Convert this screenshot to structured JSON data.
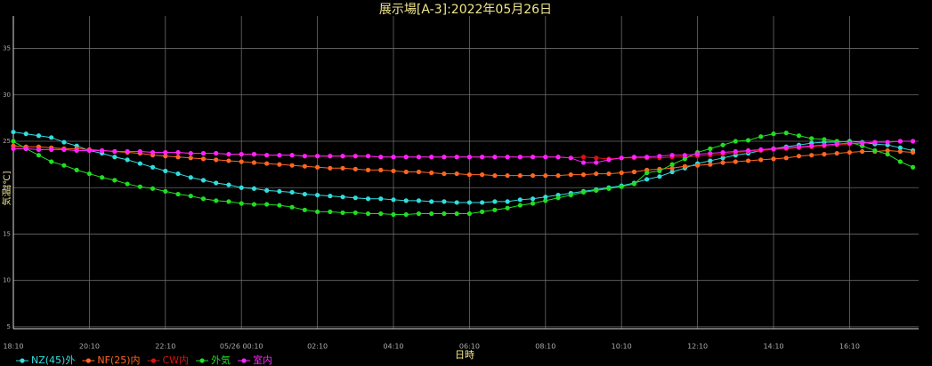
{
  "chart_data": {
    "type": "line",
    "title": "展示場[A-3]:2022年05月26日",
    "xlabel": "日時",
    "ylabel": "気温[℃]",
    "categories": [
      "18:10",
      null,
      null,
      null,
      null,
      null,
      "20:10",
      null,
      null,
      null,
      null,
      null,
      "22:10",
      null,
      null,
      null,
      null,
      null,
      "05/26 00:10",
      null,
      null,
      null,
      null,
      null,
      "02:10",
      null,
      null,
      null,
      null,
      null,
      "04:10",
      null,
      null,
      null,
      null,
      null,
      "06:10",
      null,
      null,
      null,
      null,
      null,
      "08:10",
      null,
      null,
      null,
      null,
      null,
      "10:10",
      null,
      null,
      null,
      null,
      null,
      "12:10",
      null,
      null,
      null,
      null,
      null,
      "14:10",
      null,
      null,
      null,
      null,
      null,
      "16:10",
      null,
      null,
      null,
      null,
      null
    ],
    "ylim": [
      4.8,
      38.5
    ],
    "yticks": [
      5,
      10,
      15,
      20,
      25,
      30,
      35
    ],
    "grid": true,
    "legend": "bottom-left",
    "series": [
      {
        "name": "NZ(45)外",
        "color": "#33dddd",
        "values": [
          26.0,
          25.8,
          25.6,
          25.4,
          24.9,
          24.5,
          24.0,
          23.7,
          23.3,
          23.0,
          22.6,
          22.2,
          21.8,
          21.5,
          21.1,
          20.8,
          20.5,
          20.3,
          20.0,
          19.9,
          19.7,
          19.6,
          19.5,
          19.3,
          19.2,
          19.1,
          19.0,
          18.9,
          18.8,
          18.8,
          18.7,
          18.6,
          18.6,
          18.5,
          18.5,
          18.4,
          18.4,
          18.4,
          18.5,
          18.5,
          18.7,
          18.8,
          19.0,
          19.2,
          19.4,
          19.6,
          19.8,
          20.0,
          20.2,
          20.5,
          20.9,
          21.2,
          21.7,
          22.1,
          22.6,
          22.9,
          23.2,
          23.5,
          23.7,
          24.0,
          24.2,
          24.4,
          24.6,
          24.8,
          24.9,
          24.9,
          25.0,
          24.9,
          24.7,
          24.6,
          24.3,
          24.0
        ]
      },
      {
        "name": "NF(25)内",
        "color": "#ff6622",
        "values": [
          24.5,
          24.4,
          24.4,
          24.3,
          24.2,
          24.2,
          24.1,
          24.0,
          23.9,
          23.8,
          23.7,
          23.5,
          23.4,
          23.3,
          23.2,
          23.1,
          23.0,
          22.9,
          22.8,
          22.7,
          22.6,
          22.5,
          22.4,
          22.3,
          22.2,
          22.1,
          22.1,
          22.0,
          21.9,
          21.9,
          21.8,
          21.7,
          21.7,
          21.6,
          21.5,
          21.5,
          21.4,
          21.4,
          21.3,
          21.3,
          21.3,
          21.3,
          21.3,
          21.3,
          21.4,
          21.4,
          21.5,
          21.5,
          21.6,
          21.7,
          21.9,
          22.0,
          22.1,
          22.3,
          22.4,
          22.5,
          22.7,
          22.8,
          22.9,
          23.0,
          23.1,
          23.2,
          23.4,
          23.5,
          23.6,
          23.7,
          23.8,
          23.9,
          23.9,
          24.0,
          23.9,
          23.8
        ]
      },
      {
        "name": "CW内",
        "color": "#dd1111",
        "values": [
          24.2,
          24.2,
          24.1,
          24.1,
          24.1,
          24.0,
          24.0,
          24.0,
          23.9,
          23.9,
          23.9,
          23.8,
          23.8,
          23.8,
          23.7,
          23.7,
          23.7,
          23.6,
          23.6,
          23.6,
          23.5,
          23.5,
          23.5,
          23.4,
          23.4,
          23.4,
          23.4,
          23.4,
          23.4,
          23.3,
          23.3,
          23.3,
          23.3,
          23.3,
          23.3,
          23.3,
          23.3,
          23.3,
          23.3,
          23.3,
          23.3,
          23.3,
          23.3,
          23.3,
          23.2,
          23.3,
          23.2,
          23.1,
          23.2,
          23.2,
          23.2,
          23.2,
          23.3,
          23.3,
          23.4,
          23.5,
          23.6,
          23.8,
          23.9,
          24.0,
          24.1,
          24.2,
          24.3,
          24.4,
          24.5,
          24.6,
          24.7,
          24.8,
          24.9,
          24.9,
          25.0,
          25.0
        ]
      },
      {
        "name": "外気",
        "color": "#22dd22",
        "values": [
          25.0,
          24.2,
          23.5,
          22.8,
          22.4,
          21.9,
          21.5,
          21.1,
          20.8,
          20.4,
          20.1,
          19.9,
          19.6,
          19.3,
          19.1,
          18.8,
          18.6,
          18.5,
          18.3,
          18.2,
          18.2,
          18.1,
          17.9,
          17.6,
          17.4,
          17.4,
          17.3,
          17.3,
          17.2,
          17.2,
          17.1,
          17.1,
          17.2,
          17.2,
          17.2,
          17.2,
          17.2,
          17.4,
          17.6,
          17.8,
          18.1,
          18.3,
          18.6,
          18.9,
          19.2,
          19.5,
          19.7,
          19.9,
          20.1,
          20.4,
          21.6,
          21.8,
          22.5,
          23.1,
          23.8,
          24.2,
          24.6,
          25.0,
          25.1,
          25.5,
          25.8,
          25.9,
          25.6,
          25.3,
          25.2,
          25.0,
          24.9,
          24.5,
          24.0,
          23.6,
          22.8,
          22.2
        ]
      },
      {
        "name": "室内",
        "color": "#ff22ff",
        "values": [
          24.2,
          24.2,
          24.1,
          24.1,
          24.1,
          24.0,
          24.0,
          24.0,
          23.9,
          23.9,
          23.9,
          23.8,
          23.8,
          23.8,
          23.7,
          23.7,
          23.7,
          23.6,
          23.6,
          23.6,
          23.5,
          23.5,
          23.5,
          23.4,
          23.4,
          23.4,
          23.4,
          23.4,
          23.4,
          23.3,
          23.3,
          23.3,
          23.3,
          23.3,
          23.3,
          23.3,
          23.3,
          23.3,
          23.3,
          23.3,
          23.3,
          23.3,
          23.3,
          23.3,
          23.2,
          22.7,
          22.7,
          23.0,
          23.2,
          23.3,
          23.3,
          23.4,
          23.5,
          23.5,
          23.6,
          23.7,
          23.8,
          23.9,
          24.0,
          24.1,
          24.2,
          24.3,
          24.4,
          24.5,
          24.6,
          24.7,
          24.8,
          24.8,
          24.9,
          24.9,
          25.0,
          25.0
        ]
      }
    ]
  }
}
